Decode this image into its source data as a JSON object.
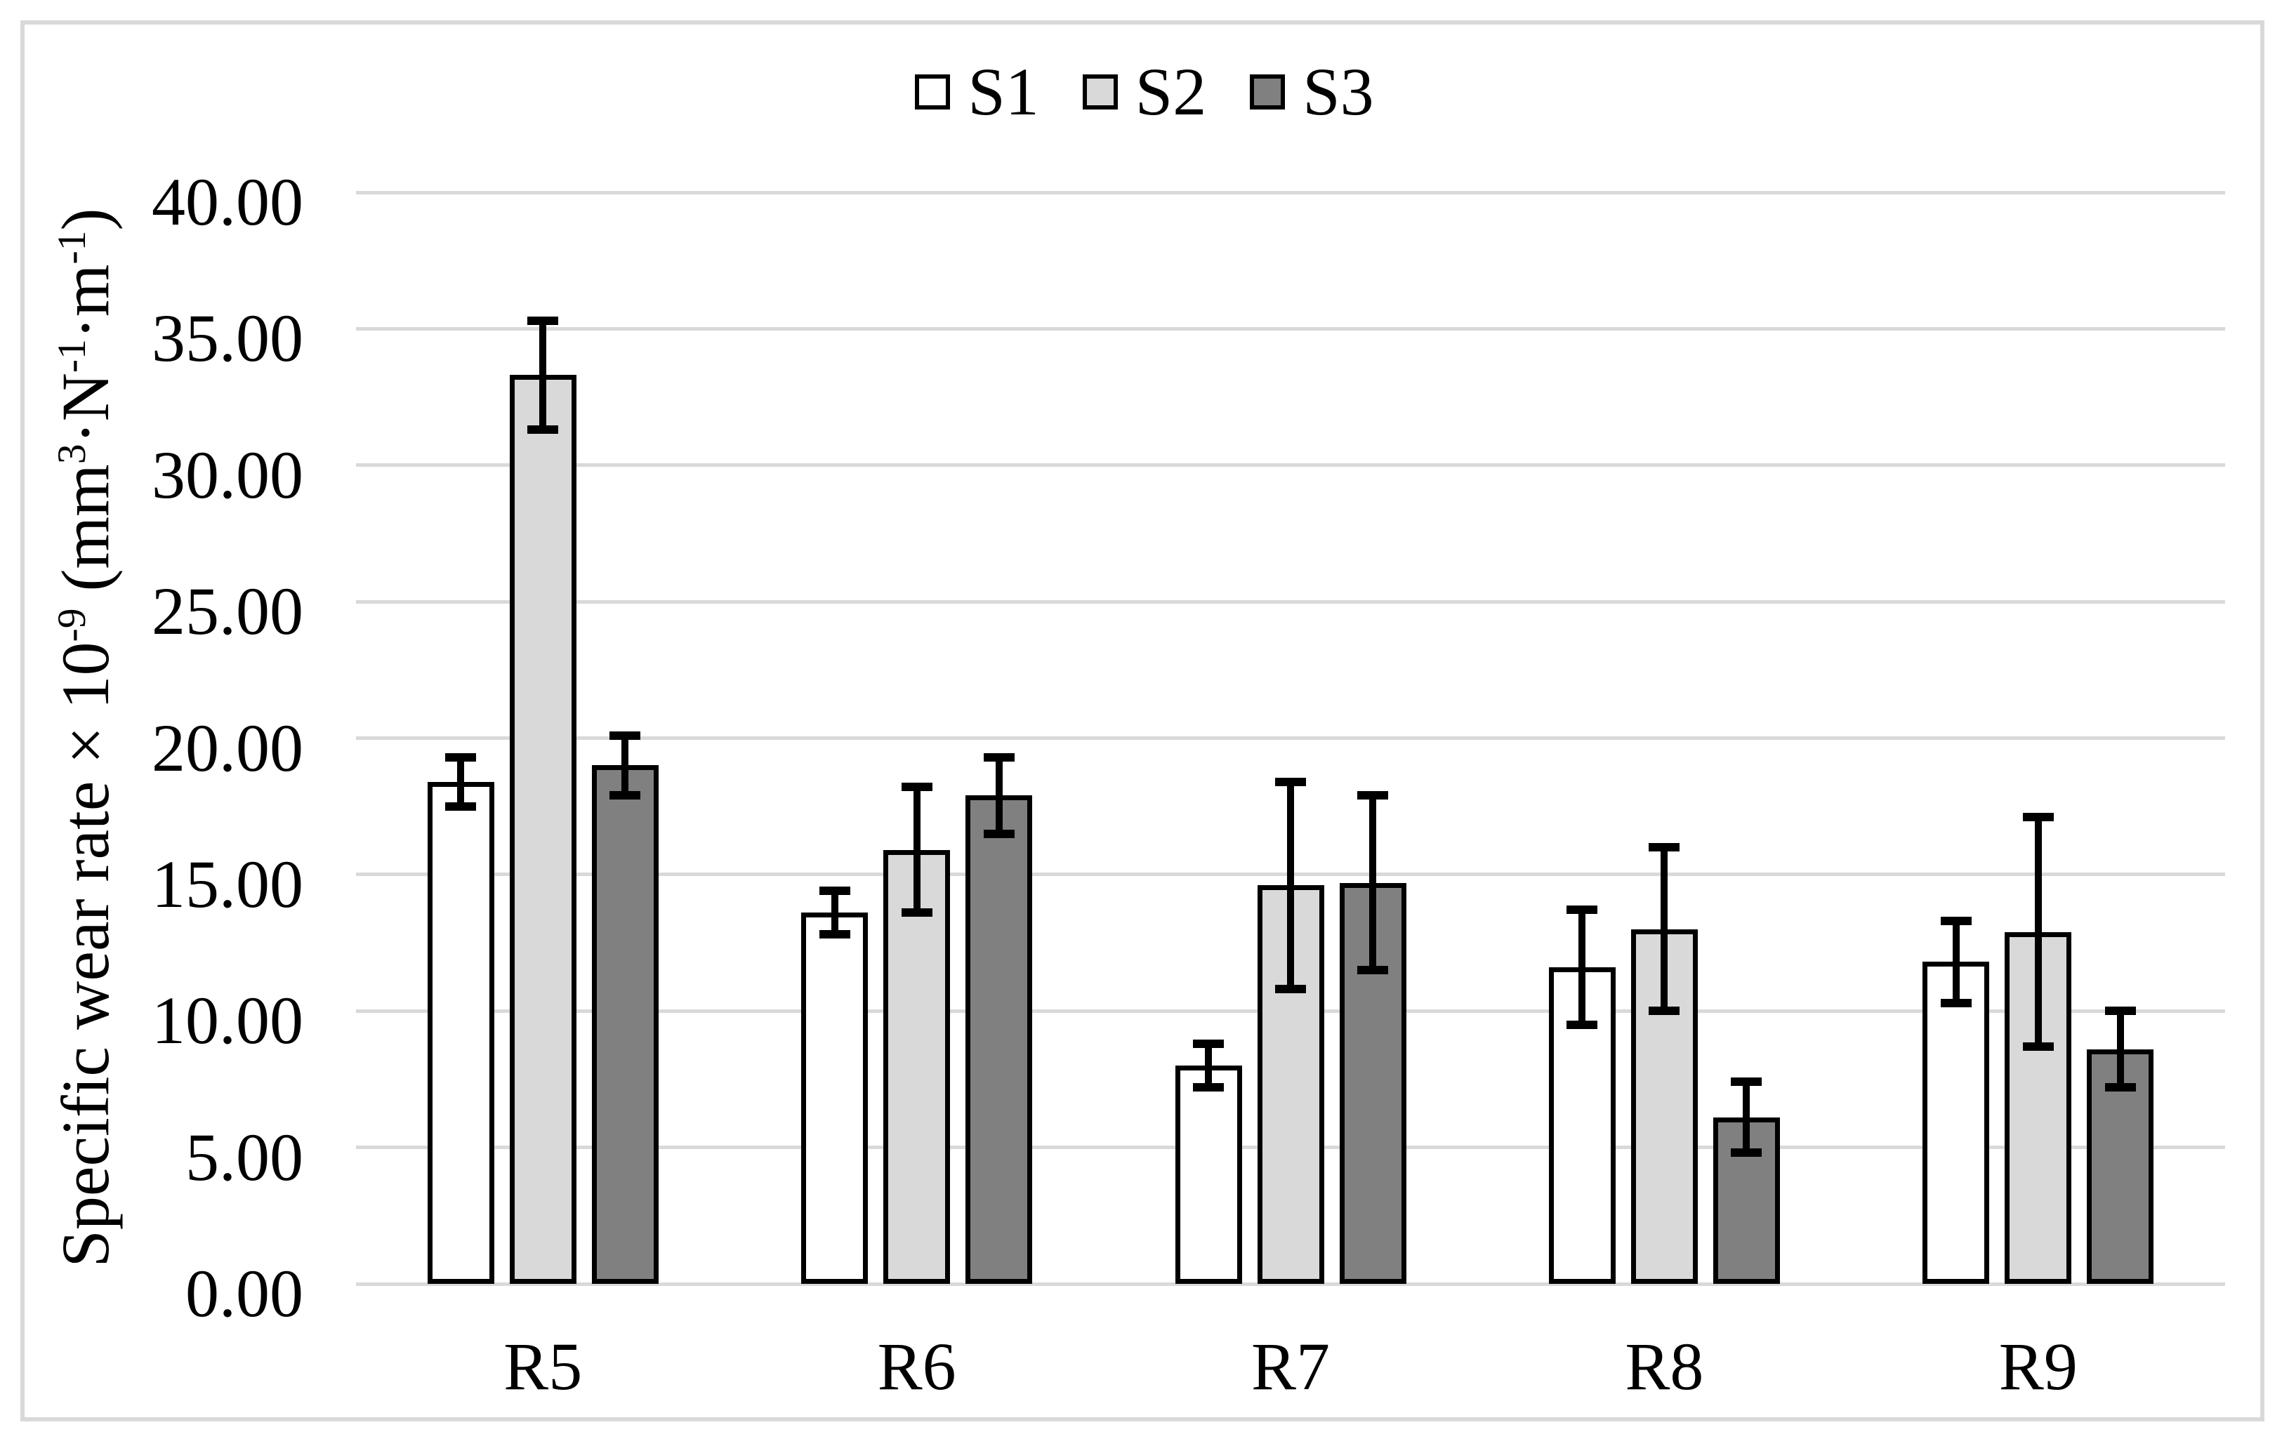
{
  "figure": {
    "background": "#ffffff",
    "frame_border_color": "#d9d9d9"
  },
  "chart_data": {
    "type": "bar",
    "title": "",
    "categories": [
      "R5",
      "R6",
      "R7",
      "R8",
      "R9"
    ],
    "series": [
      {
        "name": "S1",
        "fill": "#ffffff",
        "values": [
          18.4,
          13.6,
          8.0,
          11.6,
          11.8
        ],
        "errors": [
          0.9,
          0.8,
          0.8,
          2.1,
          1.5
        ]
      },
      {
        "name": "S2",
        "fill": "#d9d9d9",
        "values": [
          33.3,
          15.9,
          14.6,
          13.0,
          12.9
        ],
        "errors": [
          2.0,
          2.3,
          3.8,
          3.0,
          4.2
        ]
      },
      {
        "name": "S3",
        "fill": "#808080",
        "values": [
          19.0,
          17.9,
          14.7,
          6.1,
          8.6
        ],
        "errors": [
          1.1,
          1.4,
          3.2,
          1.3,
          1.4
        ]
      }
    ],
    "ylabel_segments": [
      {
        "text": "Specific wear rate "
      },
      {
        "text": "×"
      },
      {
        "text": " 10"
      },
      {
        "text": "-9",
        "sup": true
      },
      {
        "text": " (mm"
      },
      {
        "text": "3",
        "sup": true
      },
      {
        "text": "·N"
      },
      {
        "text": "-1",
        "sup": true
      },
      {
        "text": "·m"
      },
      {
        "text": "-1",
        "sup": true
      },
      {
        "text": ")"
      }
    ],
    "xlabel": "",
    "ylim": [
      0,
      40
    ],
    "ytick_values": [
      0,
      5,
      10,
      15,
      20,
      25,
      30,
      35,
      40
    ],
    "ytick_labels": [
      "0.00",
      "5.00",
      "10.00",
      "15.00",
      "20.00",
      "25.00",
      "30.00",
      "35.00",
      "40.00"
    ],
    "grid": "horizontal",
    "gridline_color": "#d9d9d9",
    "bar_border_color": "#000000",
    "error_bar_color": "#000000",
    "legend_position": "top-center",
    "legend_labels": [
      "S1",
      "S2",
      "S3"
    ]
  }
}
